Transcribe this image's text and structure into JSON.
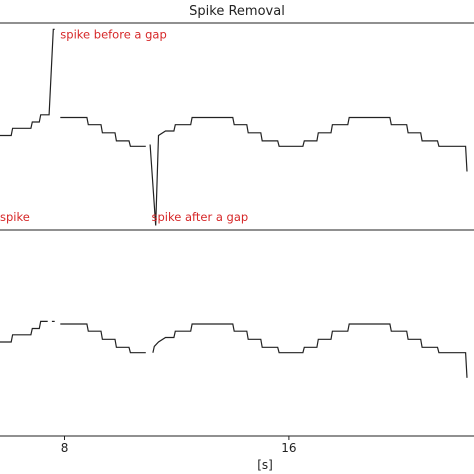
{
  "chart_data": {
    "type": "line",
    "title": "Spike Removal",
    "xlabel": "[s]",
    "xlim": [
      5.7,
      22.6
    ],
    "xticks": [
      8,
      16
    ],
    "grid": false,
    "panels": [
      {
        "id": "raw",
        "ylim": [
          -1.05,
          1.25
        ],
        "annotations": [
          {
            "text": "spike before a gap",
            "x": 7.85,
            "y": 1.08
          },
          {
            "text": "spike after a gap",
            "x": 11.1,
            "y": -0.95
          },
          {
            "text": "spike",
            "x": 5.7,
            "y": -0.95
          }
        ],
        "series": [
          {
            "segments": [
              [
                [
                  5.7,
                  0.0
                ],
                [
                  6.1,
                  0.0
                ],
                [
                  6.15,
                  0.08
                ],
                [
                  6.8,
                  0.08
                ],
                [
                  6.85,
                  0.15
                ],
                [
                  7.1,
                  0.15
                ],
                [
                  7.15,
                  0.23
                ],
                [
                  7.45,
                  0.23
                ],
                [
                  7.6,
                  1.18
                ],
                [
                  7.65,
                  1.18
                ]
              ],
              [
                [
                  7.85,
                  0.2
                ],
                [
                  8.8,
                  0.2
                ],
                [
                  8.85,
                  0.12
                ],
                [
                  9.3,
                  0.12
                ],
                [
                  9.35,
                  0.03
                ],
                [
                  9.8,
                  0.03
                ],
                [
                  9.85,
                  -0.06
                ],
                [
                  10.3,
                  -0.06
                ],
                [
                  10.35,
                  -0.12
                ],
                [
                  10.9,
                  -0.12
                ]
              ],
              [
                [
                  11.05,
                  -0.1
                ],
                [
                  11.25,
                  -1.0
                ],
                [
                  11.35,
                  0.0
                ],
                [
                  11.6,
                  0.05
                ],
                [
                  11.9,
                  0.05
                ],
                [
                  11.95,
                  0.12
                ],
                [
                  12.5,
                  0.12
                ],
                [
                  12.55,
                  0.2
                ],
                [
                  14.0,
                  0.2
                ],
                [
                  14.05,
                  0.12
                ],
                [
                  14.5,
                  0.12
                ],
                [
                  14.55,
                  0.03
                ],
                [
                  15.0,
                  0.03
                ],
                [
                  15.05,
                  -0.06
                ],
                [
                  15.6,
                  -0.06
                ],
                [
                  15.65,
                  -0.12
                ],
                [
                  16.5,
                  -0.12
                ],
                [
                  16.55,
                  -0.06
                ],
                [
                  17.0,
                  -0.06
                ],
                [
                  17.05,
                  0.03
                ],
                [
                  17.5,
                  0.03
                ],
                [
                  17.55,
                  0.12
                ],
                [
                  18.1,
                  0.12
                ],
                [
                  18.15,
                  0.2
                ],
                [
                  19.6,
                  0.2
                ],
                [
                  19.65,
                  0.12
                ],
                [
                  20.2,
                  0.12
                ],
                [
                  20.25,
                  0.03
                ],
                [
                  20.7,
                  0.03
                ],
                [
                  20.75,
                  -0.06
                ],
                [
                  21.3,
                  -0.06
                ],
                [
                  21.35,
                  -0.12
                ],
                [
                  22.3,
                  -0.12
                ],
                [
                  22.35,
                  -0.4
                ]
              ]
            ]
          }
        ]
      },
      {
        "id": "cleaned",
        "ylim": [
          -1.05,
          1.25
        ],
        "series": [
          {
            "segments": [
              [
                [
                  5.7,
                  0.0
                ],
                [
                  6.1,
                  0.0
                ],
                [
                  6.15,
                  0.08
                ],
                [
                  6.8,
                  0.08
                ],
                [
                  6.85,
                  0.15
                ],
                [
                  7.1,
                  0.15
                ],
                [
                  7.15,
                  0.23
                ],
                [
                  7.4,
                  0.23
                ]
              ],
              [
                [
                  7.55,
                  0.23
                ],
                [
                  7.65,
                  0.23
                ]
              ],
              [
                [
                  7.85,
                  0.2
                ],
                [
                  8.8,
                  0.2
                ],
                [
                  8.85,
                  0.12
                ],
                [
                  9.3,
                  0.12
                ],
                [
                  9.35,
                  0.03
                ],
                [
                  9.8,
                  0.03
                ],
                [
                  9.85,
                  -0.06
                ],
                [
                  10.3,
                  -0.06
                ],
                [
                  10.35,
                  -0.12
                ],
                [
                  10.9,
                  -0.12
                ]
              ],
              [
                [
                  11.15,
                  -0.12
                ],
                [
                  11.2,
                  -0.05
                ],
                [
                  11.35,
                  0.0
                ],
                [
                  11.6,
                  0.05
                ],
                [
                  11.9,
                  0.05
                ],
                [
                  11.95,
                  0.12
                ],
                [
                  12.5,
                  0.12
                ],
                [
                  12.55,
                  0.2
                ],
                [
                  14.0,
                  0.2
                ],
                [
                  14.05,
                  0.12
                ],
                [
                  14.5,
                  0.12
                ],
                [
                  14.55,
                  0.03
                ],
                [
                  15.0,
                  0.03
                ],
                [
                  15.05,
                  -0.06
                ],
                [
                  15.6,
                  -0.06
                ],
                [
                  15.65,
                  -0.12
                ],
                [
                  16.5,
                  -0.12
                ],
                [
                  16.55,
                  -0.06
                ],
                [
                  17.0,
                  -0.06
                ],
                [
                  17.05,
                  0.03
                ],
                [
                  17.5,
                  0.03
                ],
                [
                  17.55,
                  0.12
                ],
                [
                  18.1,
                  0.12
                ],
                [
                  18.15,
                  0.2
                ],
                [
                  19.6,
                  0.2
                ],
                [
                  19.65,
                  0.12
                ],
                [
                  20.2,
                  0.12
                ],
                [
                  20.25,
                  0.03
                ],
                [
                  20.7,
                  0.03
                ],
                [
                  20.75,
                  -0.06
                ],
                [
                  21.3,
                  -0.06
                ],
                [
                  21.35,
                  -0.12
                ],
                [
                  22.3,
                  -0.12
                ],
                [
                  22.35,
                  -0.4
                ]
              ]
            ]
          }
        ]
      }
    ]
  }
}
